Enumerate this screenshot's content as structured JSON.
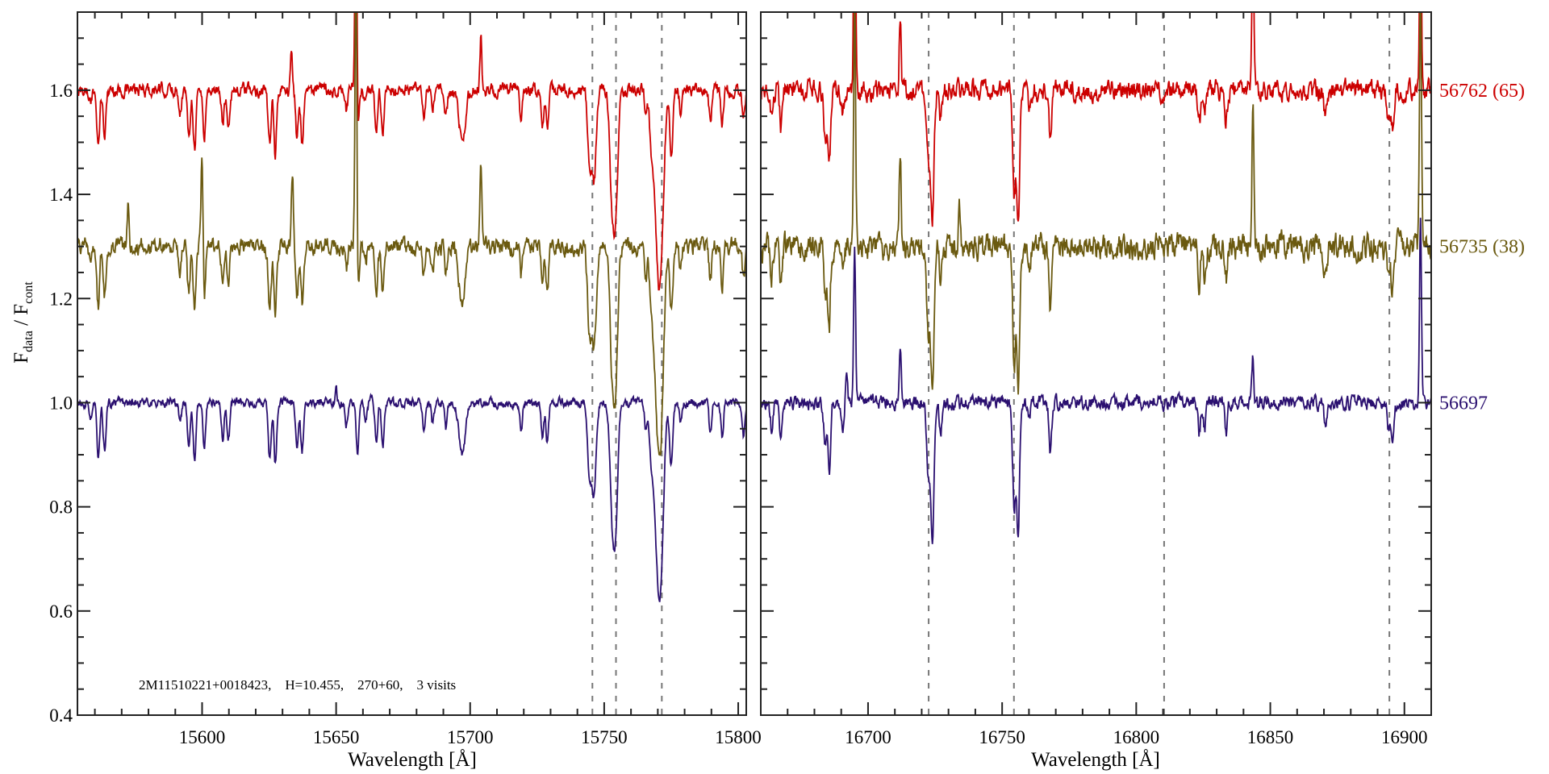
{
  "chart_data": {
    "type": "line",
    "ylabel": {
      "main1": "F",
      "sub1": "data",
      "sep": " / F",
      "sub2": "cont"
    },
    "ylim": [
      0.4,
      1.75
    ],
    "yticks": [
      0.4,
      0.6,
      0.8,
      1.0,
      1.2,
      1.4,
      1.6
    ],
    "ytick_labels": [
      "0.4",
      "0.6",
      "0.8",
      "1.0",
      "1.2",
      "1.4",
      "1.6"
    ],
    "grid": false,
    "annotation": "2M11510221+0018423,    H=10.455,    270+60,    3 visits",
    "series": [
      {
        "name": "56762 (65)",
        "color": "#cc0000",
        "offset": 0.6,
        "depth_scale": 1.0,
        "noise": 0.01
      },
      {
        "name": "56735 (38)",
        "color": "#6b5a10",
        "offset": 0.3,
        "depth_scale": 1.1,
        "noise": 0.013
      },
      {
        "name": "56697",
        "color": "#2b1070",
        "offset": 0.0,
        "depth_scale": 1.0,
        "noise": 0.007
      }
    ],
    "panels": [
      {
        "xlabel": "Wavelength [Å]",
        "xlim": [
          15553.5,
          15803
        ],
        "xticks": [
          15600,
          15650,
          15700,
          15750,
          15800
        ],
        "xtick_labels": [
          "15600",
          "15650",
          "15700",
          "15750",
          "15800"
        ],
        "dashed_lines": [
          15745.6,
          15754.4,
          15771.5
        ],
        "absorption": [
          [
            15561.3,
            0.11,
            0.5
          ],
          [
            15563.6,
            0.09,
            0.5
          ],
          [
            15558.5,
            0.03,
            0.5
          ],
          [
            15591.8,
            0.04,
            0.5
          ],
          [
            15595.0,
            0.09,
            0.5
          ],
          [
            15597.2,
            0.11,
            0.5
          ],
          [
            15600.8,
            0.09,
            0.5
          ],
          [
            15607.7,
            0.07,
            0.5
          ],
          [
            15609.8,
            0.07,
            0.5
          ],
          [
            15625.2,
            0.11,
            0.55
          ],
          [
            15627.3,
            0.12,
            0.5
          ],
          [
            15635.4,
            0.09,
            0.5
          ],
          [
            15637.3,
            0.1,
            0.5
          ],
          [
            15653.8,
            0.04,
            0.5
          ],
          [
            15658.0,
            0.1,
            0.5
          ],
          [
            15661.0,
            0.03,
            0.5
          ],
          [
            15665.0,
            0.08,
            0.5
          ],
          [
            15667.4,
            0.09,
            0.5
          ],
          [
            15682.7,
            0.05,
            0.5
          ],
          [
            15686.0,
            0.04,
            0.5
          ],
          [
            15691.0,
            0.05,
            0.5
          ],
          [
            15697.0,
            0.1,
            1.2
          ],
          [
            15719.0,
            0.05,
            0.5
          ],
          [
            15727.0,
            0.07,
            0.5
          ],
          [
            15728.8,
            0.08,
            0.5
          ],
          [
            15744.5,
            0.14,
            0.7
          ],
          [
            15746.2,
            0.17,
            0.8
          ],
          [
            15752.9,
            0.19,
            0.8
          ],
          [
            15754.3,
            0.22,
            0.8
          ],
          [
            15765.6,
            0.05,
            0.5
          ],
          [
            15767.5,
            0.08,
            0.6
          ],
          [
            15769.6,
            0.22,
            1.2
          ],
          [
            15771.2,
            0.26,
            1.1
          ],
          [
            15775.0,
            0.12,
            0.6
          ],
          [
            15778.5,
            0.04,
            0.5
          ],
          [
            15789.6,
            0.06,
            0.5
          ],
          [
            15794.0,
            0.07,
            0.5
          ],
          [
            15802.0,
            0.06,
            0.5
          ]
        ],
        "emission": [
          [
            [
              15633.3,
              0.08
            ],
            [
              15657.4,
              0.5
            ],
            [
              15704.0,
              0.1
            ]
          ],
          [
            [
              15572.5,
              0.08
            ],
            [
              15600.0,
              0.2
            ],
            [
              15633.7,
              0.15
            ],
            [
              15657.4,
              0.6
            ],
            [
              15704.0,
              0.15
            ]
          ],
          [
            [
              15650.0,
              0.03
            ],
            [
              15663.0,
              0.02
            ]
          ]
        ]
      },
      {
        "xlabel": "Wavelength [Å]",
        "xlim": [
          16660,
          16910
        ],
        "xticks": [
          16700,
          16750,
          16800,
          16850,
          16900
        ],
        "xtick_labels": [
          "16700",
          "16750",
          "16800",
          "16850",
          "16900"
        ],
        "dashed_lines": [
          16722.6,
          16754.4,
          16810.4,
          16894.4
        ],
        "absorption": [
          [
            16664.0,
            0.05,
            0.5
          ],
          [
            16667.5,
            0.07,
            0.5
          ],
          [
            16684.0,
            0.09,
            0.5
          ],
          [
            16685.5,
            0.14,
            0.5
          ],
          [
            16690.5,
            0.05,
            0.5
          ],
          [
            16722.5,
            0.14,
            0.6
          ],
          [
            16724.0,
            0.25,
            0.6
          ],
          [
            16727.0,
            0.06,
            0.5
          ],
          [
            16754.5,
            0.2,
            0.6
          ],
          [
            16756.0,
            0.25,
            0.5
          ],
          [
            16760.0,
            0.04,
            0.5
          ],
          [
            16768.0,
            0.1,
            0.5
          ],
          [
            16823.5,
            0.06,
            0.5
          ],
          [
            16825.5,
            0.05,
            0.5
          ],
          [
            16833.5,
            0.06,
            0.5
          ],
          [
            16870.5,
            0.05,
            0.5
          ],
          [
            16894.0,
            0.05,
            0.5
          ],
          [
            16895.5,
            0.07,
            0.5
          ]
        ],
        "emission": [
          [
            [
              16695.0,
              0.5
            ],
            [
              16712.0,
              0.15
            ],
            [
              16843.5,
              0.3
            ],
            [
              16906.0,
              0.4
            ]
          ],
          [
            [
              16695.0,
              0.5
            ],
            [
              16712.0,
              0.19
            ],
            [
              16734.0,
              0.1
            ],
            [
              16843.5,
              0.28
            ],
            [
              16906.0,
              0.5
            ]
          ],
          [
            [
              16692.0,
              0.06
            ],
            [
              16695.0,
              0.3
            ],
            [
              16712.0,
              0.12
            ],
            [
              16843.5,
              0.09
            ],
            [
              16906.0,
              0.35
            ]
          ]
        ]
      }
    ]
  }
}
